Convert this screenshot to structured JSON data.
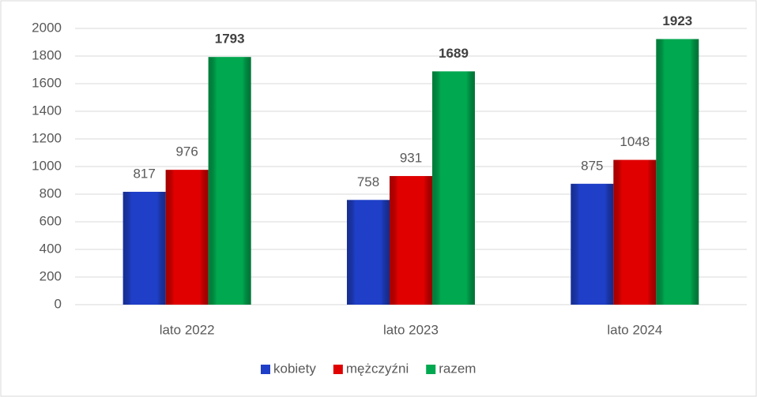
{
  "chart_data": {
    "type": "bar",
    "categories": [
      "lato 2022",
      "lato 2023",
      "lato 2024"
    ],
    "series": [
      {
        "name": "kobiety",
        "color": "#1f3fc8",
        "values": [
          817,
          758,
          875
        ]
      },
      {
        "name": "mężczyźni",
        "color": "#e00000",
        "values": [
          976,
          931,
          1048
        ]
      },
      {
        "name": "razem",
        "color": "#00a84f",
        "values": [
          1793,
          1689,
          1923
        ]
      }
    ],
    "ylim": [
      0,
      2000
    ],
    "yticks": [
      0,
      200,
      400,
      600,
      800,
      1000,
      1200,
      1400,
      1600,
      1800,
      2000
    ],
    "grid": true,
    "legend": "bottom"
  }
}
